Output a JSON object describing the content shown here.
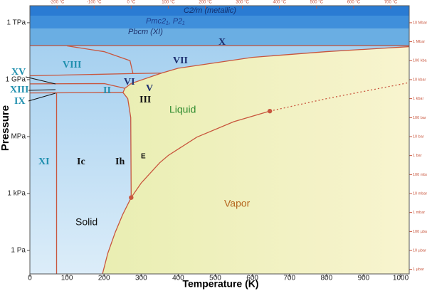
{
  "chart_data": {
    "type": "phase_diagram",
    "x_label": "Temperature (K)",
    "y_label": "Pressure",
    "xlim": [
      0,
      1023
    ],
    "xticks": [
      0,
      100,
      200,
      300,
      400,
      500,
      600,
      700,
      800,
      900,
      1000
    ],
    "ylim": [
      0.058,
      7900000000000.0
    ],
    "yscale": "log",
    "yticks": [
      {
        "value": 1,
        "label": "1 Pa"
      },
      {
        "value": 1000,
        "label": "1 kPa"
      },
      {
        "value": 1000000,
        "label": "MPa"
      },
      {
        "value": 1000000000,
        "label": "1 GPa"
      },
      {
        "value": 1000000000000,
        "label": "1 TPa"
      }
    ],
    "x2lim": [
      -273.15,
      749.85
    ],
    "x2ticks": [
      {
        "value": -200,
        "label": "-200 °C"
      },
      {
        "value": -100,
        "label": "-100 °C"
      },
      {
        "value": 0,
        "label": "0 °C"
      },
      {
        "value": 100,
        "label": "100 °C"
      },
      {
        "value": 200,
        "label": "200 °C"
      },
      {
        "value": 300,
        "label": "300 °C"
      },
      {
        "value": 400,
        "label": "400 °C"
      },
      {
        "value": 500,
        "label": "500 °C"
      },
      {
        "value": 600,
        "label": "600 °C"
      },
      {
        "value": 700,
        "label": "700 °C"
      }
    ],
    "y2lim": [
      5.8e-07,
      79000000.0
    ],
    "y2ticks": [
      {
        "value": 10000000,
        "label": "10 Mbar"
      },
      {
        "value": 1000000,
        "label": "1 Mbar"
      },
      {
        "value": 100000,
        "label": "100 kbar"
      },
      {
        "value": 10000,
        "label": "10 kbar"
      },
      {
        "value": 1000,
        "label": "1 kbar"
      },
      {
        "value": 100,
        "label": "100 bar"
      },
      {
        "value": 10,
        "label": "10 bar"
      },
      {
        "value": 1,
        "label": "1 bar"
      },
      {
        "value": 0.1,
        "label": "100 mbar"
      },
      {
        "value": 0.01,
        "label": "10 mbar"
      },
      {
        "value": 0.001,
        "label": "1 mbar"
      },
      {
        "value": 0.0001,
        "label": "100 µbar"
      },
      {
        "value": 1e-05,
        "label": "10 µbar"
      },
      {
        "value": 1e-06,
        "label": "1 µbar"
      }
    ],
    "boundary_color": "#c8553d",
    "boundaries": [
      {
        "style": "solid",
        "x": [
          196,
          210,
          230,
          250,
          273.16
        ],
        "y": [
          0.06,
          0.7,
          8.9,
          76,
          611.657
        ]
      },
      {
        "style": "solid",
        "x": [
          273.16,
          300,
          350,
          373.15,
          450,
          550,
          647.096
        ],
        "y": [
          611.657,
          3537,
          41682,
          101325,
          932000,
          6120000,
          22064000
        ]
      },
      {
        "style": "dotted",
        "x": [
          647.096,
          800,
          1023
        ],
        "y": [
          22064000,
          100000000,
          700000000
        ]
      },
      {
        "style": "solid",
        "x": [
          273.16,
          272,
          264,
          251.165
        ],
        "y": [
          611.657,
          10000000,
          100000000,
          209900000
        ]
      },
      {
        "style": "solid",
        "x": [
          251.165,
          256.165,
          273.31,
          355,
          400,
          600,
          800,
          1023
        ],
        "y": [
          209900000,
          350100000,
          632400000,
          2216000000,
          4000000000,
          15000000000,
          30000000000,
          55000000000
        ]
      },
      {
        "style": "solid",
        "x": [
          0,
          1023
        ],
        "y": [
          62000000000,
          62000000000
        ]
      },
      {
        "style": "solid",
        "x": [
          278,
          270,
          200,
          100
        ],
        "y": [
          2100000000,
          10000000000,
          30000000000,
          60000000000
        ]
      },
      {
        "style": "solid",
        "x": [
          0,
          278,
          355
        ],
        "y": [
          1600000000,
          2100000000,
          2216000000
        ]
      },
      {
        "style": "solid",
        "x": [
          0,
          238,
          251.165
        ],
        "y": [
          200000000,
          210000000,
          209900000
        ]
      },
      {
        "style": "solid",
        "x": [
          0,
          201,
          256.165
        ],
        "y": [
          600000000,
          620000000,
          350100000
        ]
      },
      {
        "style": "solid",
        "x": [
          72,
          72
        ],
        "y": [
          0.06,
          200000000
        ]
      }
    ],
    "points": {
      "x": [
        273.16,
        647.096
      ],
      "y": [
        611.657,
        22064000
      ]
    },
    "region_labels": [
      "X",
      "VII",
      "VIII",
      "VI",
      "V",
      "II",
      "III",
      "XV",
      "XIII",
      "IX",
      "XI",
      "Ic",
      "Ih",
      "E",
      "Liquid",
      "Vapor",
      "Solid",
      "C2/m (metallic)",
      "Pmc2₁, P2₁",
      "Pbcm (XI)"
    ]
  }
}
